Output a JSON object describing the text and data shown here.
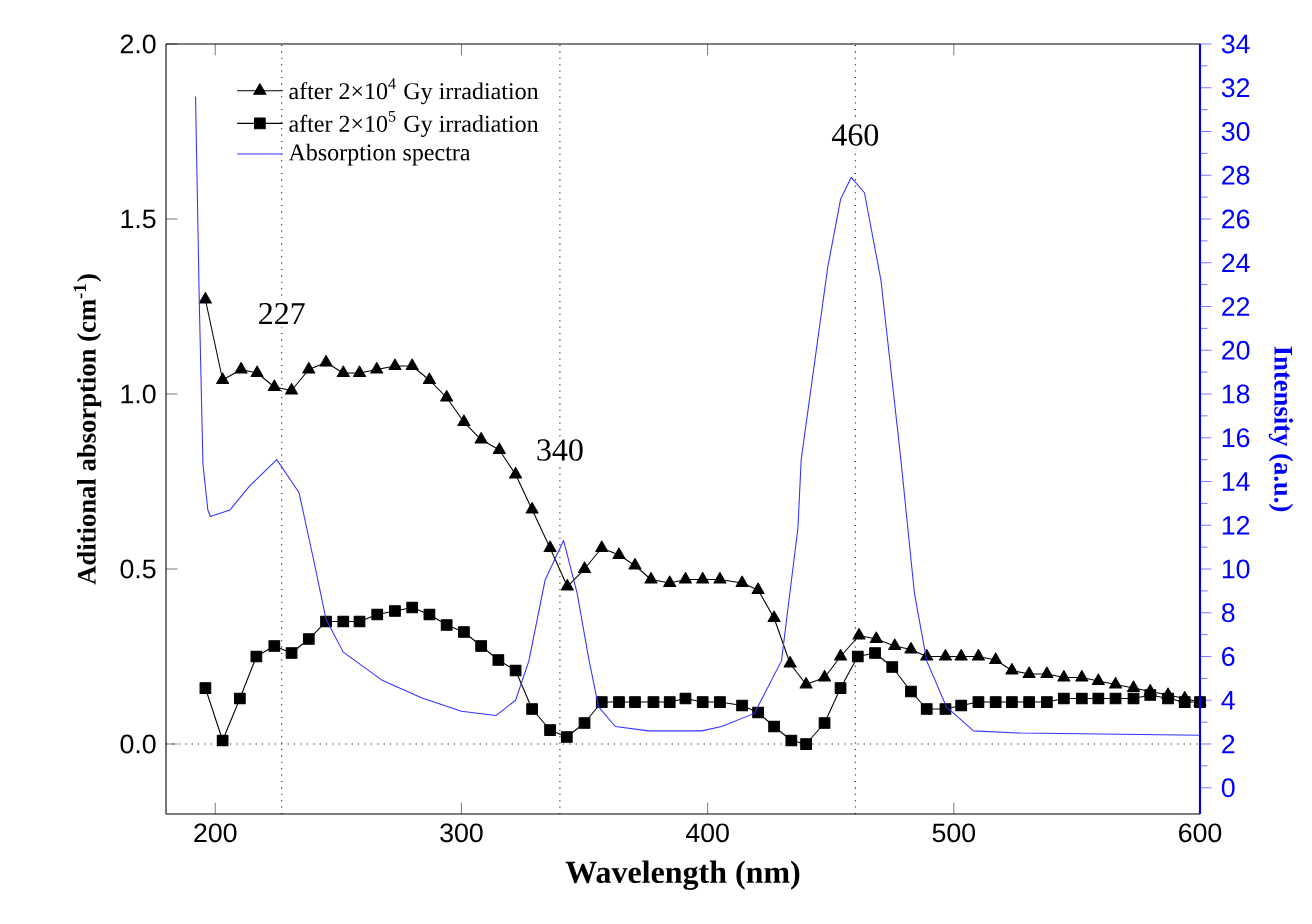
{
  "chart_data": {
    "type": "line",
    "xlabel": "Wavelength (nm)",
    "ylabel": "Aditional absorption  (cm$^{-1}$)",
    "y2label": "Intensity (a.u.)",
    "xlim": [
      180,
      600
    ],
    "ylim": [
      -0.2,
      2.0
    ],
    "y2lim": [
      -1.2,
      34
    ],
    "xticks": [
      200,
      300,
      400,
      500,
      600
    ],
    "yticks": [
      {
        "value": 0,
        "label": "0.0"
      },
      {
        "value": 0.5,
        "label": "0.5"
      },
      {
        "value": 1,
        "label": "1.0"
      },
      {
        "value": 1.5,
        "label": "1.5"
      },
      {
        "value": 2,
        "label": "2.0"
      }
    ],
    "y2ticks": [
      0,
      2,
      4,
      6,
      8,
      10,
      12,
      14,
      16,
      18,
      20,
      22,
      24,
      26,
      28,
      30,
      32,
      34
    ],
    "legend": "top left",
    "grid": false,
    "series": [
      {
        "name": "after 2×10$^{4}$ Gy irradiation",
        "color": "#000000",
        "marker": "triangle",
        "line_style": "solid",
        "x": [
          196,
          203,
          210.5,
          217,
          224,
          231,
          238,
          245,
          252,
          258.6,
          265.6,
          273,
          280,
          287,
          294,
          301,
          308,
          315.4,
          322,
          328.7,
          336,
          343,
          350,
          357,
          364,
          370.5,
          377,
          384.6,
          391,
          398,
          405,
          414,
          420.5,
          427,
          433.5,
          440,
          447.5,
          454,
          461.5,
          468.5,
          476,
          482.6,
          489,
          496.6,
          503,
          510,
          517,
          523.6,
          530.6,
          537.8,
          544.7,
          552,
          558.7,
          565.7,
          573,
          579.8,
          587,
          593.8,
          600
        ],
        "values": [
          1.27,
          1.04,
          1.07,
          1.06,
          1.02,
          1.01,
          1.07,
          1.09,
          1.06,
          1.06,
          1.07,
          1.08,
          1.08,
          1.04,
          0.99,
          0.92,
          0.87,
          0.84,
          0.77,
          0.67,
          0.56,
          0.45,
          0.5,
          0.56,
          0.54,
          0.51,
          0.47,
          0.46,
          0.47,
          0.47,
          0.47,
          0.46,
          0.44,
          0.36,
          0.23,
          0.17,
          0.19,
          0.25,
          0.31,
          0.3,
          0.28,
          0.27,
          0.25,
          0.25,
          0.25,
          0.25,
          0.24,
          0.21,
          0.2,
          0.2,
          0.19,
          0.19,
          0.18,
          0.17,
          0.16,
          0.15,
          0.14,
          0.13,
          0.12
        ]
      },
      {
        "name": "after 2×10$^{5}$ Gy  irradiation",
        "color": "#000000",
        "marker": "square",
        "line_style": "solid",
        "x": [
          196,
          203,
          210,
          216.7,
          224,
          231,
          238,
          245,
          252,
          258.6,
          265.8,
          273,
          280,
          287,
          294,
          301,
          308,
          315,
          322,
          328.7,
          336,
          342.8,
          350,
          357,
          364,
          370.5,
          378,
          384.6,
          391,
          398,
          405,
          414,
          420.5,
          427,
          434,
          440,
          447.5,
          454,
          461,
          468,
          475,
          482.6,
          489,
          496.6,
          503,
          510,
          517,
          523.6,
          530.6,
          537.8,
          544.7,
          552,
          558.7,
          565.7,
          573,
          579.8,
          587,
          593.8,
          600
        ],
        "values": [
          0.16,
          0.01,
          0.13,
          0.25,
          0.28,
          0.26,
          0.3,
          0.35,
          0.35,
          0.35,
          0.37,
          0.38,
          0.39,
          0.37,
          0.34,
          0.32,
          0.28,
          0.24,
          0.21,
          0.1,
          0.04,
          0.02,
          0.06,
          0.12,
          0.12,
          0.12,
          0.12,
          0.12,
          0.13,
          0.12,
          0.12,
          0.11,
          0.09,
          0.05,
          0.01,
          0.0,
          0.06,
          0.16,
          0.25,
          0.26,
          0.22,
          0.15,
          0.1,
          0.1,
          0.11,
          0.12,
          0.12,
          0.12,
          0.12,
          0.12,
          0.13,
          0.13,
          0.13,
          0.13,
          0.13,
          0.14,
          0.13,
          0.12,
          0.12
        ]
      },
      {
        "name": "Absorption spectra",
        "color": "#3333ff",
        "marker": "none",
        "line_style": "solid",
        "axis": "y2",
        "x": [
          192,
          193.5,
          195,
          197,
          198,
          206,
          214,
          225,
          234,
          240,
          245,
          252,
          268,
          284,
          300,
          314,
          322,
          327.4,
          334,
          341.5,
          347,
          351.7,
          355.7,
          362.5,
          376,
          397.6,
          405.7,
          419,
          430,
          436.7,
          438,
          448.8,
          454,
          458.3,
          463.7,
          470.4,
          478.5,
          484,
          489,
          497,
          508,
          527,
          600
        ],
        "values": [
          31.6,
          22.3,
          14.8,
          12.7,
          12.4,
          12.7,
          13.8,
          15.0,
          13.5,
          10.4,
          7.7,
          6.2,
          4.9,
          4.1,
          3.5,
          3.3,
          4.0,
          5.8,
          9.5,
          11.3,
          8.9,
          5.9,
          3.7,
          2.8,
          2.6,
          2.6,
          2.8,
          3.4,
          5.8,
          11.9,
          15.0,
          23.8,
          26.9,
          27.9,
          27.2,
          23.2,
          15.0,
          8.9,
          5.8,
          3.7,
          2.6,
          2.5,
          2.4
        ]
      }
    ],
    "ref_lines": [
      {
        "axis": "x",
        "value": 227,
        "color": "#000000",
        "line_style": "dotted"
      },
      {
        "axis": "x",
        "value": 340,
        "color": "#000000",
        "line_style": "dotted"
      },
      {
        "axis": "x",
        "value": 460,
        "color": "#000000",
        "line_style": "dotted"
      },
      {
        "axis": "y",
        "value": 0,
        "color": "#000000",
        "line_style": "dotted"
      }
    ],
    "annotations": [
      {
        "text": "227",
        "x": 227,
        "y": 1.23
      },
      {
        "text": "340",
        "x": 340,
        "y": 0.84
      },
      {
        "text": "460",
        "x": 460,
        "y": 1.74
      }
    ]
  }
}
